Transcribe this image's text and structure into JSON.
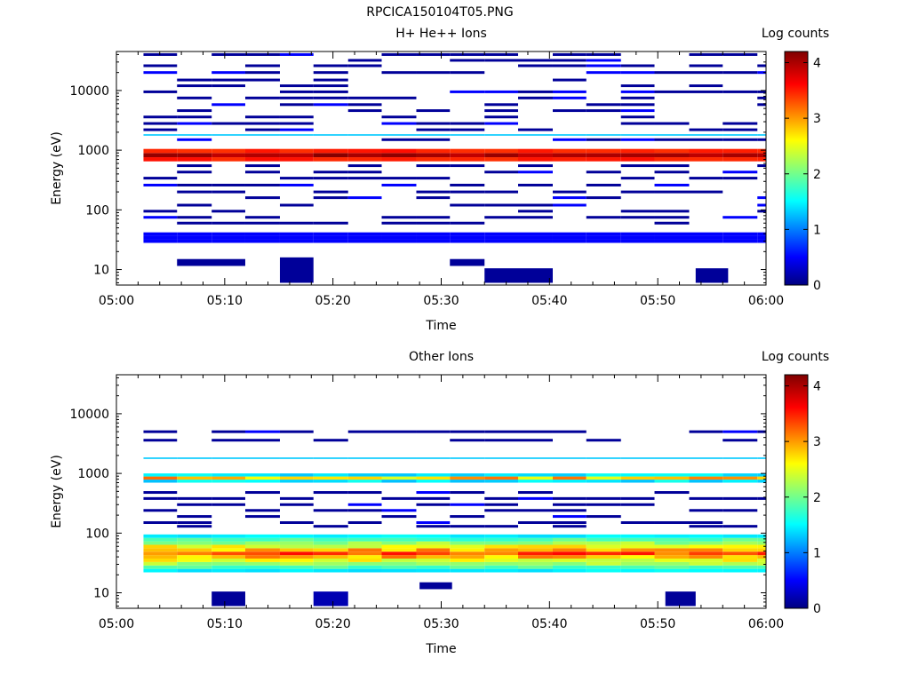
{
  "page_title": "RPCICA150104T05.PNG",
  "chart_data": [
    {
      "type": "heatmap",
      "title": "H+ He++ Ions",
      "xlabel": "Time",
      "ylabel": "Energy (eV)",
      "y_scale": "log",
      "ylim": [
        5.5,
        45000
      ],
      "x_ticks": [
        "05:00",
        "05:10",
        "05:20",
        "05:30",
        "05:40",
        "05:50",
        "06:00"
      ],
      "y_ticks": [
        "10",
        "100",
        "1000",
        "10000"
      ],
      "colorbar": {
        "label": "Log counts",
        "range": [
          0,
          4.2
        ],
        "ticks": [
          "0",
          "1",
          "2",
          "3",
          "4"
        ]
      },
      "time_bins_minutes": [
        2.5,
        5.6,
        8.8,
        11.9,
        15.1,
        18.2,
        21.4,
        24.5,
        27.7,
        30.8,
        34.0,
        37.1,
        40.3,
        43.4,
        46.6,
        49.7,
        52.9,
        56.0,
        59.2,
        60.0
      ],
      "sparse_energy_levels_eV": [
        40000,
        32000,
        26000,
        20000,
        15000,
        12000,
        9500,
        7500,
        5800,
        4600,
        3600,
        2800,
        2200,
        1500,
        550,
        430,
        340,
        260,
        200,
        160,
        120,
        95,
        75,
        60
      ],
      "bands": [
        {
          "energy_low": 650,
          "energy_high": 1050,
          "min": 3.0,
          "max": 4.2
        },
        {
          "energy_low": 1750,
          "energy_high": 1850,
          "value": 1.3
        },
        {
          "energy_low": 28,
          "energy_high": 42,
          "value": 0.5
        }
      ],
      "low_energy_blocks": [
        {
          "t_start": 5.6,
          "t_end": 11.9,
          "energy_low": 11.5,
          "energy_high": 15,
          "value": 0.1
        },
        {
          "t_start": 15.1,
          "t_end": 18.2,
          "energy_low": 6,
          "energy_high": 16,
          "value": 0.1
        },
        {
          "t_start": 30.8,
          "t_end": 34.0,
          "energy_low": 11.5,
          "energy_high": 15,
          "value": 0.1
        },
        {
          "t_start": 34.0,
          "t_end": 40.3,
          "energy_low": 6,
          "energy_high": 10.5,
          "value": 0.1
        },
        {
          "t_start": 53.5,
          "t_end": 56.5,
          "energy_low": 6,
          "energy_high": 10.5,
          "value": 0.1
        }
      ]
    },
    {
      "type": "heatmap",
      "title": "Other Ions",
      "xlabel": "Time",
      "ylabel": "Energy (eV)",
      "y_scale": "log",
      "ylim": [
        5.5,
        45000
      ],
      "x_ticks": [
        "05:00",
        "05:10",
        "05:20",
        "05:30",
        "05:40",
        "05:50",
        "06:00"
      ],
      "y_ticks": [
        "10",
        "100",
        "1000",
        "10000"
      ],
      "colorbar": {
        "label": "Log counts",
        "range": [
          0,
          4.2
        ],
        "ticks": [
          "0",
          "1",
          "2",
          "3",
          "4"
        ]
      },
      "time_bins_minutes": [
        2.5,
        5.6,
        8.8,
        11.9,
        15.1,
        18.2,
        21.4,
        24.5,
        27.7,
        30.8,
        34.0,
        37.1,
        40.3,
        43.4,
        46.6,
        49.7,
        52.9,
        56.0,
        59.2,
        60.0
      ],
      "sparse_energy_levels_eV": [
        5000,
        3600,
        480,
        380,
        300,
        240,
        190,
        150,
        130
      ],
      "bands": [
        {
          "energy_low": 22,
          "energy_high": 95,
          "min": 0.8,
          "max": 3.6
        },
        {
          "energy_low": 700,
          "energy_high": 1000,
          "min": 0.2,
          "max": 3.2
        },
        {
          "energy_low": 1750,
          "energy_high": 1850,
          "value": 1.3
        }
      ],
      "low_energy_blocks": [
        {
          "t_start": 8.8,
          "t_end": 11.9,
          "energy_low": 6,
          "energy_high": 10.5,
          "value": 0.1
        },
        {
          "t_start": 18.2,
          "t_end": 21.4,
          "energy_low": 6,
          "energy_high": 10.5,
          "value": 0.2
        },
        {
          "t_start": 28.0,
          "t_end": 31.0,
          "energy_low": 11.5,
          "energy_high": 15,
          "value": 0.1
        },
        {
          "t_start": 50.7,
          "t_end": 53.5,
          "energy_low": 6,
          "energy_high": 10.5,
          "value": 0.1
        }
      ]
    }
  ]
}
